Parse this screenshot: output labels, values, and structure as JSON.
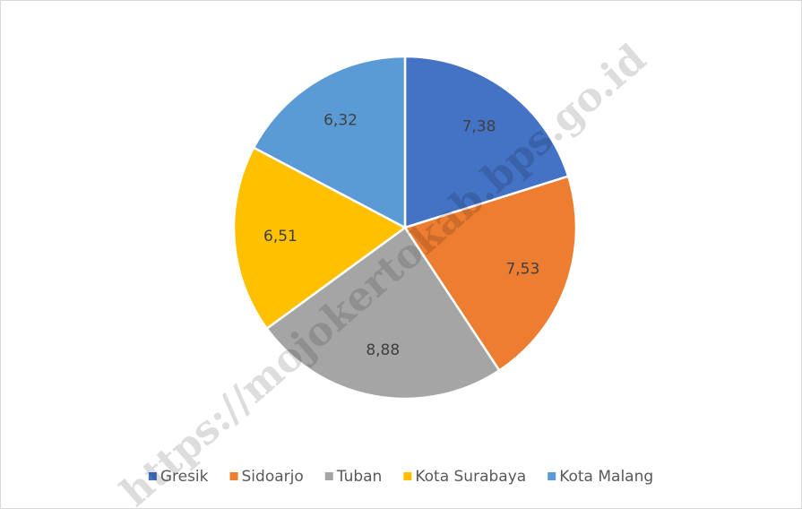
{
  "chart_data": {
    "type": "pie",
    "categories": [
      "Gresik",
      "Sidoarjo",
      "Tuban",
      "Kota Surabaya",
      "Kota Malang"
    ],
    "values": [
      7.38,
      7.53,
      8.88,
      6.51,
      6.32
    ],
    "value_labels": [
      "7,38",
      "7,53",
      "8,88",
      "6,51",
      "6,32"
    ],
    "colors": [
      "#4472c4",
      "#ed7d31",
      "#a5a5a5",
      "#ffc000",
      "#5b9bd5"
    ],
    "legend": "bottom",
    "watermark": "https://mojokertokab.bps.go.id"
  }
}
